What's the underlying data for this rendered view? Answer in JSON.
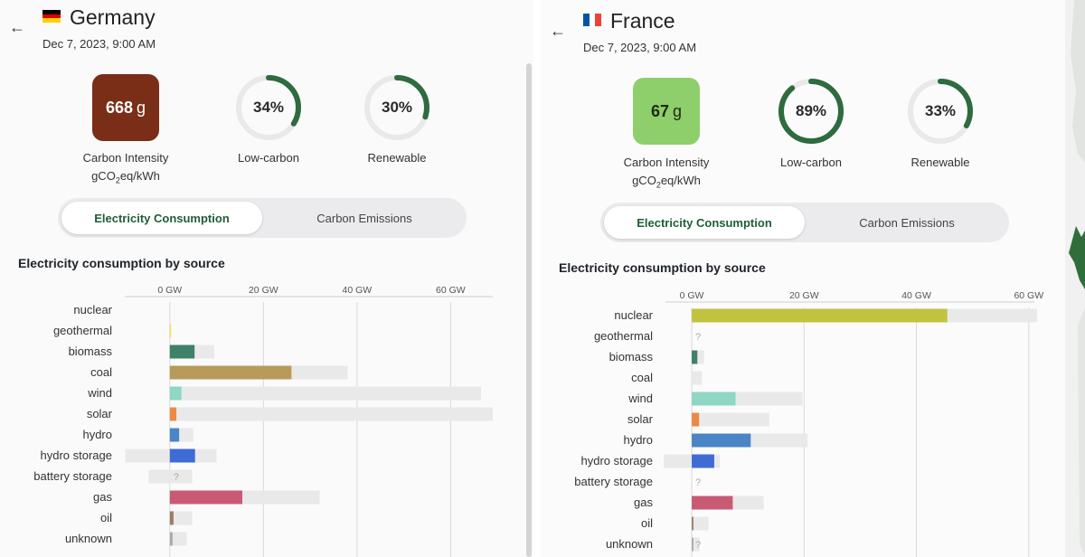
{
  "panels": {
    "de": {
      "country": "Germany",
      "date": "Dec 7, 2023, 9:00 AM",
      "carbon_intensity": {
        "value": "668",
        "unit": "g",
        "label": "Carbon Intensity",
        "unit_label_pre": "gCO",
        "unit_label_sub": "2",
        "unit_label_post": "eq/kWh",
        "color": "#7a2e17"
      },
      "low_carbon": {
        "value": "34%",
        "fraction": 0.34,
        "label": "Low-carbon"
      },
      "renewable": {
        "value": "30%",
        "fraction": 0.3,
        "label": "Renewable"
      },
      "tabs": {
        "consumption": "Electricity Consumption",
        "emissions": "Carbon Emissions"
      },
      "section_title": "Electricity consumption by source"
    },
    "fr": {
      "country": "France",
      "date": "Dec 7, 2023, 9:00 AM",
      "carbon_intensity": {
        "value": "67",
        "unit": "g",
        "label": "Carbon Intensity",
        "unit_label_pre": "gCO",
        "unit_label_sub": "2",
        "unit_label_post": "eq/kWh",
        "color": "#8ecf6b"
      },
      "low_carbon": {
        "value": "89%",
        "fraction": 0.89,
        "label": "Low-carbon"
      },
      "renewable": {
        "value": "33%",
        "fraction": 0.33,
        "label": "Renewable"
      },
      "tabs": {
        "consumption": "Electricity Consumption",
        "emissions": "Carbon Emissions"
      },
      "section_title": "Electricity consumption by source"
    }
  },
  "colors": {
    "ring_fill": "#2e6b3e",
    "ring_track": "#e9e9e9",
    "capacity": "#e9e9e9",
    "grid": "#d9d9d9"
  },
  "chart_data": [
    {
      "type": "bar",
      "country": "Germany",
      "x_ticks": [
        "0 GW",
        "20 GW",
        "40 GW",
        "60 GW"
      ],
      "x_tick_values": [
        0,
        20,
        40,
        60
      ],
      "xlim": [
        -10,
        69
      ],
      "sources": [
        {
          "name": "nuclear",
          "value": 0,
          "capacity": 0,
          "color": "#c0c240"
        },
        {
          "name": "geothermal",
          "value": 0.1,
          "capacity": 0.1,
          "color": "#f0e060"
        },
        {
          "name": "biomass",
          "value": 5.3,
          "capacity": 9.5,
          "color": "#3f8068"
        },
        {
          "name": "coal",
          "value": 26,
          "capacity": 38,
          "color": "#b89a5a"
        },
        {
          "name": "wind",
          "value": 2.5,
          "capacity": 66.5,
          "color": "#8fd6c4"
        },
        {
          "name": "solar",
          "value": 1.4,
          "capacity": 69,
          "color": "#ea8a45"
        },
        {
          "name": "hydro",
          "value": 2,
          "capacity": 5,
          "color": "#4a85c6"
        },
        {
          "name": "hydro storage",
          "value": 5.4,
          "capacity": 10,
          "min": -9.5,
          "color": "#3e6cd4"
        },
        {
          "name": "battery storage",
          "value": 0,
          "capacity": 4.8,
          "min": -4.5,
          "color": "#8fa3d6",
          "unknown": true
        },
        {
          "name": "gas",
          "value": 15.5,
          "capacity": 32,
          "color": "#c95a73"
        },
        {
          "name": "oil",
          "value": 0.8,
          "capacity": 4.8,
          "color": "#9c7e66"
        },
        {
          "name": "unknown",
          "value": 0.6,
          "capacity": 3.6,
          "color": "#aaaaaa"
        }
      ]
    },
    {
      "type": "bar",
      "country": "France",
      "x_ticks": [
        "0 GW",
        "20 GW",
        "40 GW",
        "60 GW"
      ],
      "x_tick_values": [
        0,
        20,
        40,
        60
      ],
      "xlim": [
        -5,
        61
      ],
      "sources": [
        {
          "name": "nuclear",
          "value": 45.5,
          "capacity": 61.5,
          "color": "#c1c23f"
        },
        {
          "name": "geothermal",
          "value": 0,
          "capacity": 0,
          "color": "#f0e060",
          "unknown": true
        },
        {
          "name": "biomass",
          "value": 1,
          "capacity": 2.2,
          "color": "#3f8068"
        },
        {
          "name": "coal",
          "value": 0,
          "capacity": 1.8,
          "color": "#b89a5a"
        },
        {
          "name": "wind",
          "value": 7.8,
          "capacity": 19.7,
          "color": "#8fd6c4"
        },
        {
          "name": "solar",
          "value": 1.3,
          "capacity": 13.8,
          "color": "#ea8a45"
        },
        {
          "name": "hydro",
          "value": 10.5,
          "capacity": 20.6,
          "color": "#4a85c6"
        },
        {
          "name": "hydro storage",
          "value": 4,
          "capacity": 5,
          "min": -5,
          "color": "#3e6cd4"
        },
        {
          "name": "battery storage",
          "value": 0,
          "capacity": 0,
          "color": "#8fa3d6",
          "unknown": true
        },
        {
          "name": "gas",
          "value": 7.3,
          "capacity": 12.8,
          "color": "#c95a73"
        },
        {
          "name": "oil",
          "value": 0.3,
          "capacity": 3,
          "color": "#9c7e66"
        },
        {
          "name": "unknown",
          "value": 0.3,
          "capacity": 1.4,
          "color": "#aaaaaa",
          "unknown": true
        }
      ]
    }
  ]
}
